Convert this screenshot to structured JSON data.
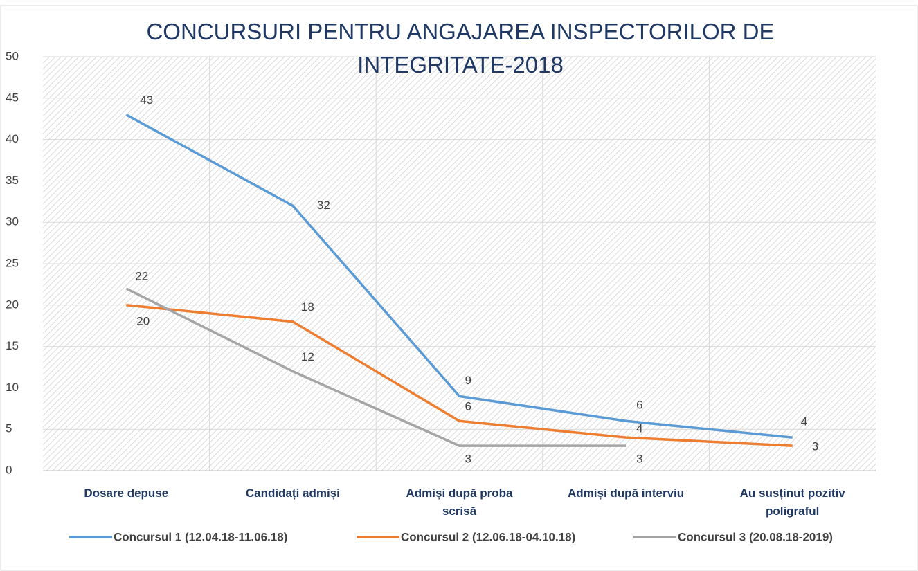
{
  "chart_data": {
    "type": "line",
    "title": "CONCURSURI PENTRU ANGAJAREA INSPECTORILOR DE INTEGRITATE-2018",
    "categories": [
      "Dosare depuse",
      "Candidați admiși",
      "Admiși după proba scrisă",
      "Admiși după  interviu",
      "Au susținut pozitiv poligraful"
    ],
    "series": [
      {
        "name": "Concursul 1 (12.04.18-11.06.18)",
        "color": "#5b9bd5",
        "values": [
          43,
          32,
          9,
          6,
          4
        ]
      },
      {
        "name": "Concursul 2 (12.06.18-04.10.18)",
        "color": "#ed7d31",
        "values": [
          20,
          18,
          6,
          4,
          3
        ]
      },
      {
        "name": "Concursul 3 (20.08.18-2019)",
        "color": "#a5a5a5",
        "values": [
          22,
          12,
          3,
          3,
          null
        ]
      }
    ],
    "ylim": [
      0,
      50
    ],
    "yticks": [
      0,
      5,
      10,
      15,
      20,
      25,
      30,
      35,
      40,
      45,
      50
    ],
    "grid": true,
    "legend": "bottom"
  }
}
